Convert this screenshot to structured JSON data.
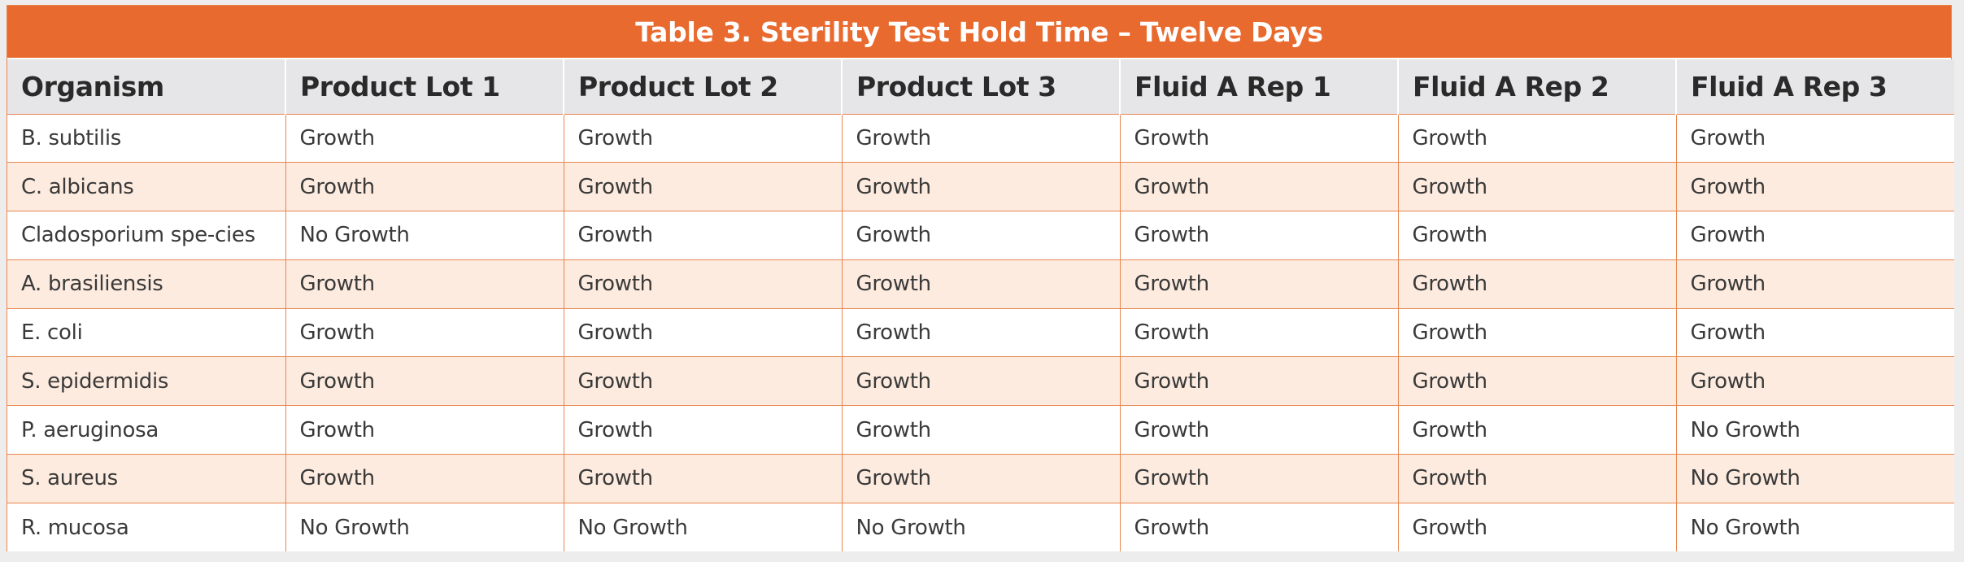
{
  "table": {
    "title": "Table 3. Sterility Test Hold Time – Twelve Days",
    "headers": [
      "Organism",
      "Product Lot 1",
      "Product Lot 2",
      "Product Lot 3",
      "Fluid A Rep 1",
      "Fluid A Rep 2",
      "Fluid A Rep 3"
    ],
    "rows": [
      [
        "B. subtilis",
        "Growth",
        "Growth",
        "Growth",
        "Growth",
        "Growth",
        "Growth"
      ],
      [
        "C. albicans",
        "Growth",
        "Growth",
        "Growth",
        "Growth",
        "Growth",
        "Growth"
      ],
      [
        "Cladosporium spe-cies",
        "No Growth",
        "Growth",
        "Growth",
        "Growth",
        "Growth",
        "Growth"
      ],
      [
        "A. brasiliensis",
        "Growth",
        "Growth",
        "Growth",
        "Growth",
        "Growth",
        "Growth"
      ],
      [
        "E. coli",
        "Growth",
        "Growth",
        "Growth",
        "Growth",
        "Growth",
        "Growth"
      ],
      [
        "S. epidermidis",
        "Growth",
        "Growth",
        "Growth",
        "Growth",
        "Growth",
        "Growth"
      ],
      [
        "P. aeruginosa",
        "Growth",
        "Growth",
        "Growth",
        "Growth",
        "Growth",
        "No Growth"
      ],
      [
        "S. aureus",
        "Growth",
        "Growth",
        "Growth",
        "Growth",
        "Growth",
        "No Growth"
      ],
      [
        "R. mucosa",
        "No Growth",
        "No Growth",
        "No Growth",
        "Growth",
        "Growth",
        "No Growth"
      ]
    ]
  },
  "colors": {
    "title_bg": "#e96a2e",
    "header_bg": "#e6e6e8",
    "alt_row_bg": "#fdebdf",
    "border": "#e8864f"
  }
}
